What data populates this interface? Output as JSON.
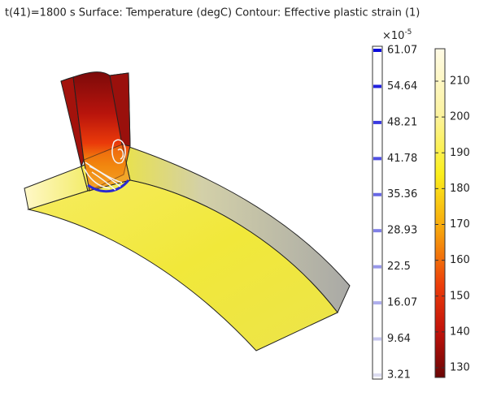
{
  "title": "t(41)=1800 s  Surface: Temperature (degC)  Contour: Effective plastic strain (1)",
  "contour_legend": {
    "multiplier": "×10",
    "exponent": "-5",
    "levels": [
      61.07,
      54.64,
      48.21,
      41.78,
      35.36,
      28.93,
      22.5,
      16.07,
      9.64,
      3.21
    ]
  },
  "surface_legend": {
    "ticks": [
      210,
      200,
      190,
      180,
      170,
      160,
      150,
      140,
      130
    ]
  }
}
